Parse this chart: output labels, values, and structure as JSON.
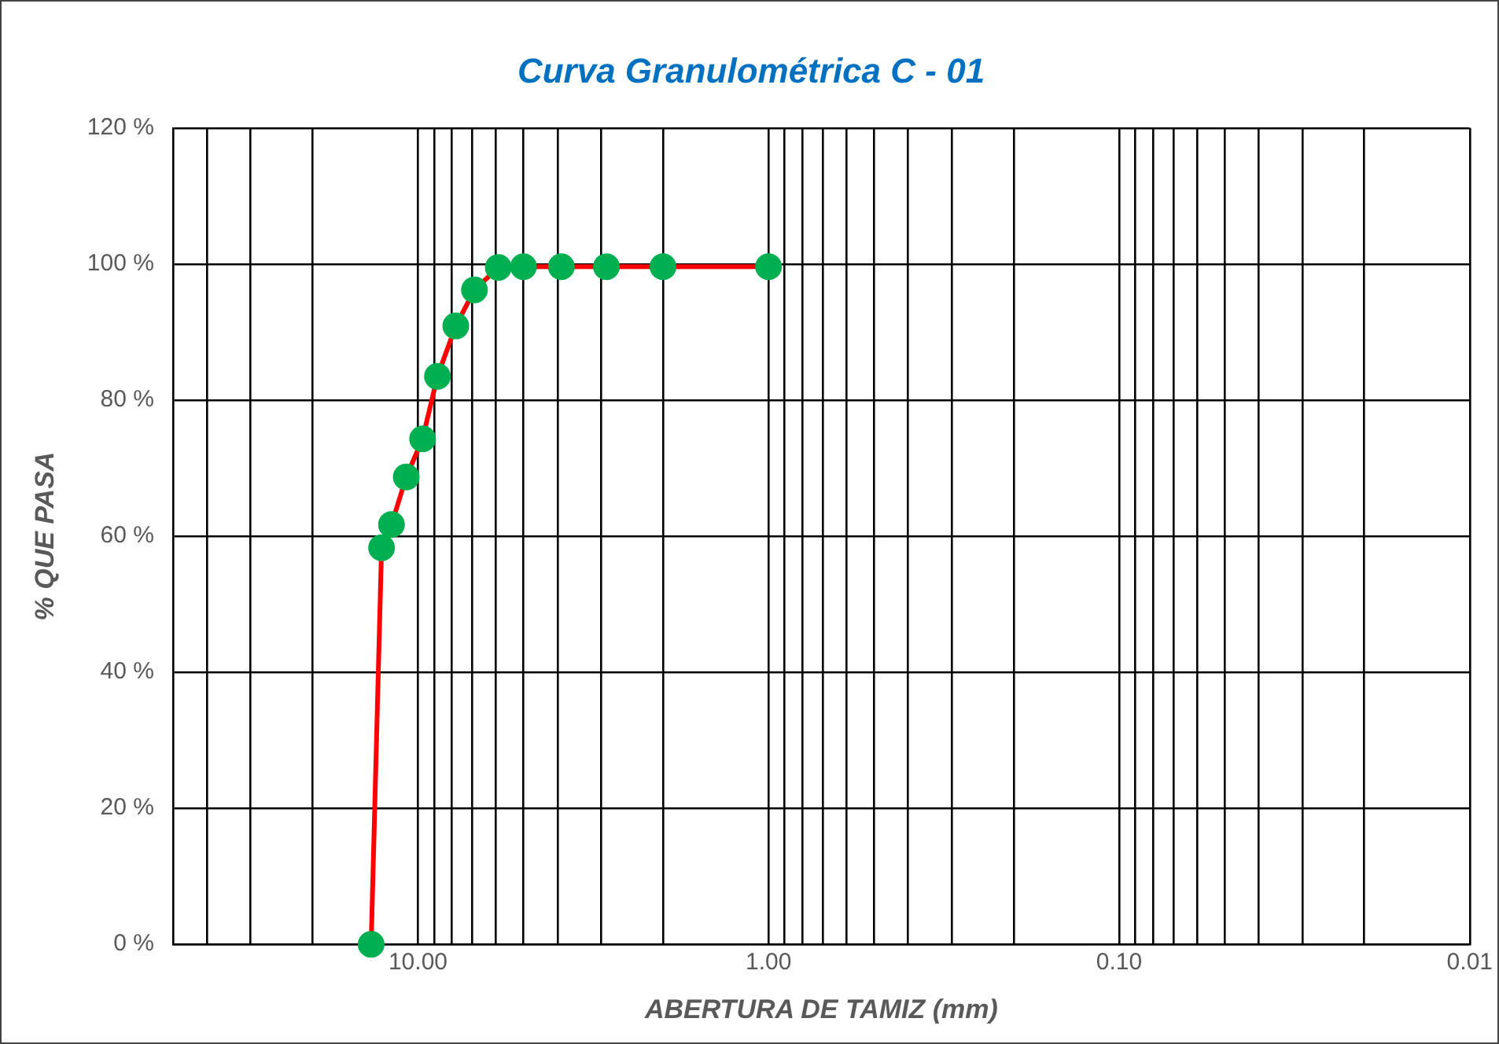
{
  "chart_data": {
    "type": "line",
    "title": "Curva Granulométrica C - 01",
    "xlabel": "ABERTURA DE TAMIZ (mm)",
    "ylabel": "% QUE PASA",
    "x": [
      13.6,
      12.7,
      11.9,
      10.8,
      9.7,
      8.8,
      7.8,
      6.9,
      5.9,
      5.0,
      3.9,
      2.9,
      2.0,
      1.0
    ],
    "series": [
      {
        "color": "#ff0000",
        "values": [
          0,
          58.3,
          61.7,
          68.7,
          74.3,
          83.5,
          90.9,
          96.2,
          99.5,
          99.6,
          99.6,
          99.6,
          99.6,
          99.6
        ]
      }
    ],
    "log": "x",
    "xlim": [
      50,
      0.01
    ],
    "xticks": [
      {
        "value": 40,
        "label": null
      },
      {
        "value": 30,
        "label": null
      },
      {
        "value": 20,
        "label": null
      },
      {
        "value": 10,
        "label": "10.00"
      },
      {
        "value": 9,
        "label": null
      },
      {
        "value": 8,
        "label": null
      },
      {
        "value": 7,
        "label": null
      },
      {
        "value": 6,
        "label": null
      },
      {
        "value": 5,
        "label": null
      },
      {
        "value": 4,
        "label": null
      },
      {
        "value": 3,
        "label": null
      },
      {
        "value": 2,
        "label": null
      },
      {
        "value": 1,
        "label": "1.00"
      },
      {
        "value": 0.9,
        "label": null
      },
      {
        "value": 0.8,
        "label": null
      },
      {
        "value": 0.7,
        "label": null
      },
      {
        "value": 0.6,
        "label": null
      },
      {
        "value": 0.5,
        "label": null
      },
      {
        "value": 0.4,
        "label": null
      },
      {
        "value": 0.3,
        "label": null
      },
      {
        "value": 0.2,
        "label": null
      },
      {
        "value": 0.1,
        "label": "0.10"
      },
      {
        "value": 0.09,
        "label": null
      },
      {
        "value": 0.08,
        "label": null
      },
      {
        "value": 0.07,
        "label": null
      },
      {
        "value": 0.06,
        "label": null
      },
      {
        "value": 0.05,
        "label": null
      },
      {
        "value": 0.04,
        "label": null
      },
      {
        "value": 0.03,
        "label": null
      },
      {
        "value": 0.02,
        "label": null
      },
      {
        "value": 0.01,
        "label": "0.01"
      }
    ],
    "ylim": [
      0,
      120
    ],
    "yticks": [
      {
        "value": 0,
        "label": "0 %"
      },
      {
        "value": 20,
        "label": "20 %"
      },
      {
        "value": 40,
        "label": "40 %"
      },
      {
        "value": 60,
        "label": "60 %"
      },
      {
        "value": 80,
        "label": "80 %"
      },
      {
        "value": 100,
        "label": "100 %"
      },
      {
        "value": 120,
        "label": "120 %"
      }
    ],
    "grid": true,
    "legend": false,
    "marker": "circle",
    "line_style": "solid"
  }
}
